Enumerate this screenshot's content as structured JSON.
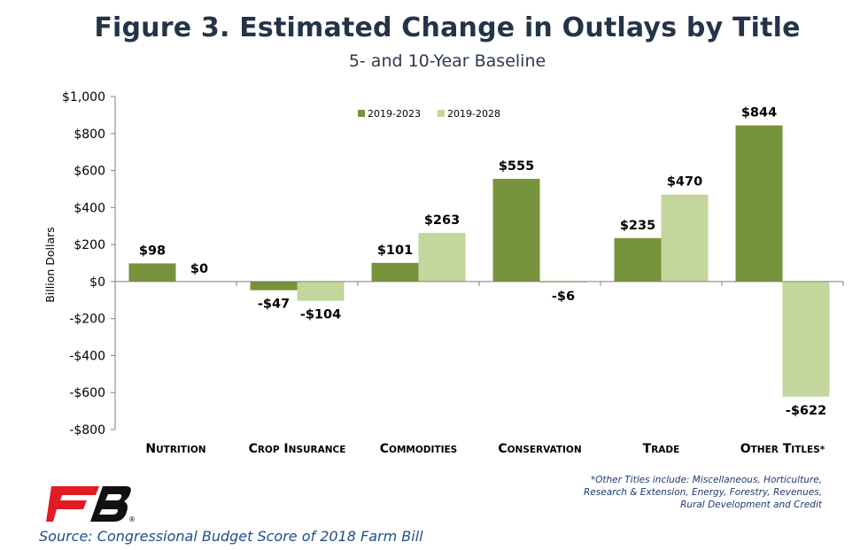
{
  "header": {
    "title": "Figure 3. Estimated Change in Outlays by Title",
    "subtitle": "5- and 10-Year Baseline"
  },
  "chart_data": {
    "type": "bar",
    "ylabel": "Billion Dollars",
    "ylim": [
      -800,
      1000
    ],
    "yticks": [
      1000,
      800,
      600,
      400,
      200,
      0,
      -200,
      -400,
      -600,
      -800
    ],
    "ytick_labels": [
      "$1,000",
      "$800",
      "$600",
      "$400",
      "$200",
      "$0",
      "-$200",
      "-$400",
      "-$600",
      "-$800"
    ],
    "categories": [
      "Nutrition",
      "Crop Insurance",
      "Commodities",
      "Conservation",
      "Trade",
      "Other Titles*"
    ],
    "series": [
      {
        "name": "2019-2023",
        "color": "#77933c",
        "values": [
          98,
          -47,
          101,
          555,
          235,
          844
        ],
        "labels": [
          "$98",
          "-$47",
          "$101",
          "$555",
          "$235",
          "$844"
        ]
      },
      {
        "name": "2019-2028",
        "color": "#c3d69b",
        "values": [
          0,
          -104,
          263,
          -6,
          470,
          -622
        ],
        "labels": [
          "$0",
          "-$104",
          "$263",
          "-$6",
          "$470",
          "-$622"
        ]
      }
    ],
    "legend_position": "top-center",
    "grid": false
  },
  "footnote": {
    "lines": [
      "*Other Titles include: Miscellaneous, Horticulture,",
      "Research & Extension, Energy, Forestry, Revenues,",
      "Rural Development and Credit"
    ]
  },
  "source": "Source: Congressional Budget Score of 2018 Farm Bill",
  "logo": {
    "text": "FB",
    "registered": "®",
    "color": "#e31b23",
    "dark": "#111111"
  }
}
